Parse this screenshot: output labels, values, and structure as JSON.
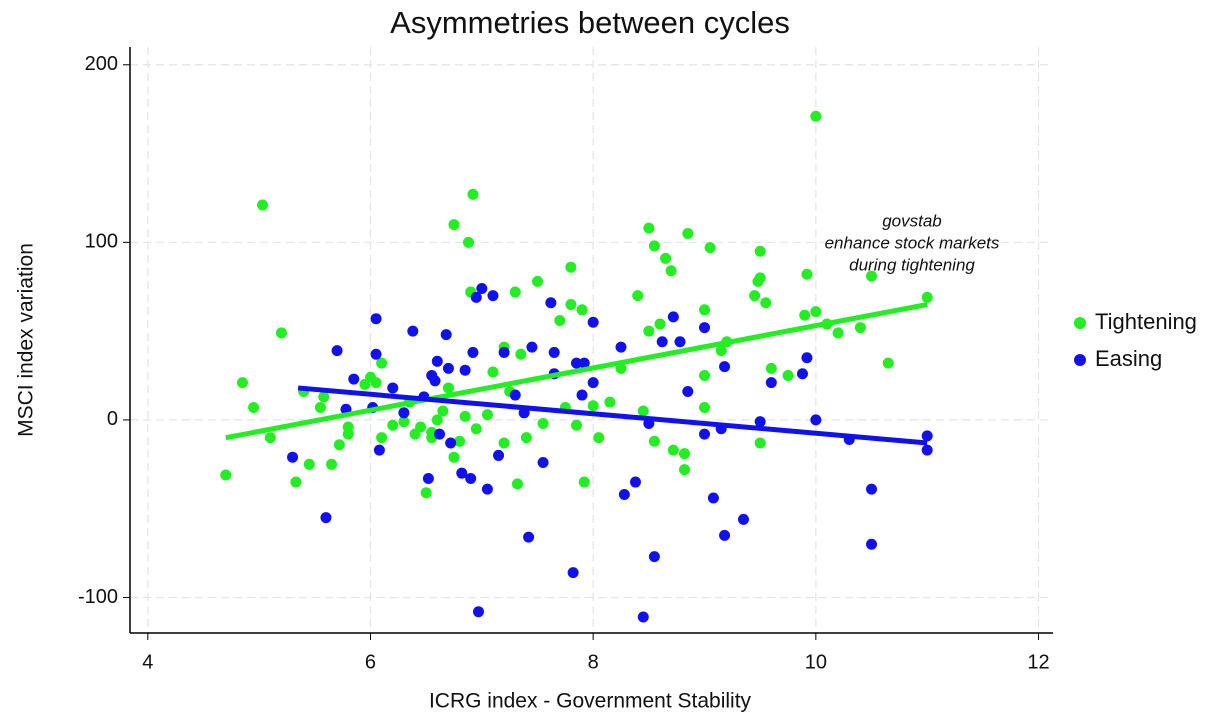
{
  "chart_data": {
    "type": "scatter",
    "title": "Asymmetries between cycles",
    "x_label": "ICRG index - Government Stability",
    "y_label": "MSCI index variation",
    "annotation": [
      "govstab",
      "enhance stock markets",
      "during tightening"
    ],
    "xlim": [
      3.84,
      12.13
    ],
    "ylim": [
      -120,
      210
    ],
    "xticks": [
      4,
      6,
      8,
      10,
      12
    ],
    "yticks": [
      -100,
      0,
      100,
      200
    ],
    "grid": true,
    "legend": "right",
    "series": [
      {
        "name": "Tightening",
        "color": "#22ee22",
        "x": [
          4.7,
          4.85,
          4.95,
          5.03,
          5.1,
          5.2,
          5.33,
          5.4,
          5.45,
          5.55,
          5.58,
          5.65,
          5.72,
          5.8,
          5.8,
          5.95,
          6.0,
          6.05,
          6.1,
          6.1,
          6.2,
          6.3,
          6.35,
          6.4,
          6.45,
          6.5,
          6.55,
          6.55,
          6.6,
          6.65,
          6.7,
          6.75,
          6.75,
          6.8,
          6.85,
          6.88,
          6.9,
          6.92,
          6.95,
          7.05,
          7.1,
          7.15,
          7.2,
          7.2,
          7.25,
          7.3,
          7.32,
          7.35,
          7.4,
          7.5,
          7.55,
          7.7,
          7.75,
          7.8,
          7.8,
          7.85,
          7.9,
          7.92,
          8.0,
          8.05,
          8.15,
          8.25,
          8.4,
          8.45,
          8.5,
          8.5,
          8.55,
          8.55,
          8.6,
          8.65,
          8.7,
          8.72,
          8.82,
          8.82,
          8.85,
          9.0,
          9.0,
          9.0,
          9.05,
          9.15,
          9.2,
          9.45,
          9.48,
          9.5,
          9.5,
          9.5,
          9.55,
          9.6,
          9.75,
          9.9,
          9.92,
          10.0,
          10.0,
          10.1,
          10.2,
          10.4,
          10.5,
          10.65,
          11.0
        ],
        "values": [
          -31,
          21,
          7,
          121,
          -10,
          49,
          -35,
          16,
          -25,
          7,
          13,
          -25,
          -14,
          -8,
          -4,
          20,
          24,
          21,
          32,
          -10,
          -3,
          -1,
          10,
          -8,
          -4,
          -41,
          -7,
          -10,
          0,
          5,
          18,
          110,
          -21,
          -12,
          2,
          100,
          72,
          127,
          -5,
          3,
          27,
          -20,
          41,
          -13,
          16,
          72,
          -36,
          37,
          -10,
          78,
          -2,
          56,
          7,
          86,
          65,
          -3,
          62,
          -35,
          8,
          -10,
          10,
          29,
          70,
          5,
          108,
          50,
          98,
          -12,
          54,
          91,
          84,
          -17,
          -28,
          -19,
          105,
          62,
          25,
          7,
          97,
          39,
          44,
          70,
          78,
          95,
          80,
          -13,
          66,
          29,
          25,
          59,
          82,
          171,
          61,
          54,
          49,
          52,
          81,
          32,
          69
        ]
      },
      {
        "name": "Easing",
        "color": "#1111ee",
        "x": [
          5.3,
          5.6,
          5.7,
          5.78,
          5.85,
          6.02,
          6.05,
          6.05,
          6.08,
          6.2,
          6.3,
          6.38,
          6.48,
          6.52,
          6.55,
          6.58,
          6.6,
          6.62,
          6.68,
          6.7,
          6.72,
          6.82,
          6.85,
          6.9,
          6.92,
          6.97,
          6.95,
          7.0,
          7.05,
          7.1,
          7.15,
          7.2,
          7.3,
          7.38,
          7.42,
          7.45,
          7.55,
          7.62,
          7.65,
          7.65,
          7.82,
          7.85,
          7.9,
          7.92,
          8.0,
          8.0,
          8.25,
          8.28,
          8.38,
          8.45,
          8.5,
          8.55,
          8.62,
          8.72,
          8.78,
          8.85,
          9.0,
          9.0,
          9.08,
          9.15,
          9.18,
          9.18,
          9.35,
          9.5,
          9.6,
          9.88,
          9.92,
          10.0,
          10.3,
          10.5,
          10.5,
          11.0,
          11.0
        ],
        "values": [
          -21,
          -55,
          39,
          6,
          23,
          7,
          57,
          37,
          -17,
          18,
          4,
          50,
          13,
          -33,
          25,
          22,
          33,
          -8,
          48,
          29,
          -13,
          -30,
          28,
          -33,
          38,
          -108,
          69,
          74,
          -39,
          70,
          -20,
          38,
          14,
          4,
          -66,
          41,
          -24,
          66,
          38,
          26,
          -86,
          32,
          14,
          32,
          55,
          21,
          41,
          -42,
          -35,
          -111,
          -2,
          -77,
          44,
          58,
          44,
          16,
          52,
          -8,
          -44,
          -5,
          -65,
          30,
          -56,
          -1,
          21,
          26,
          35,
          0,
          -11,
          -39,
          -70,
          -9,
          -17
        ]
      }
    ],
    "fit_lines": [
      {
        "color": "#22ee22",
        "x": [
          4.7,
          11
        ],
        "values": [
          -10,
          65
        ]
      },
      {
        "color": "#1111ee",
        "x": [
          5.35,
          11
        ],
        "values": [
          18,
          -13
        ]
      }
    ]
  }
}
